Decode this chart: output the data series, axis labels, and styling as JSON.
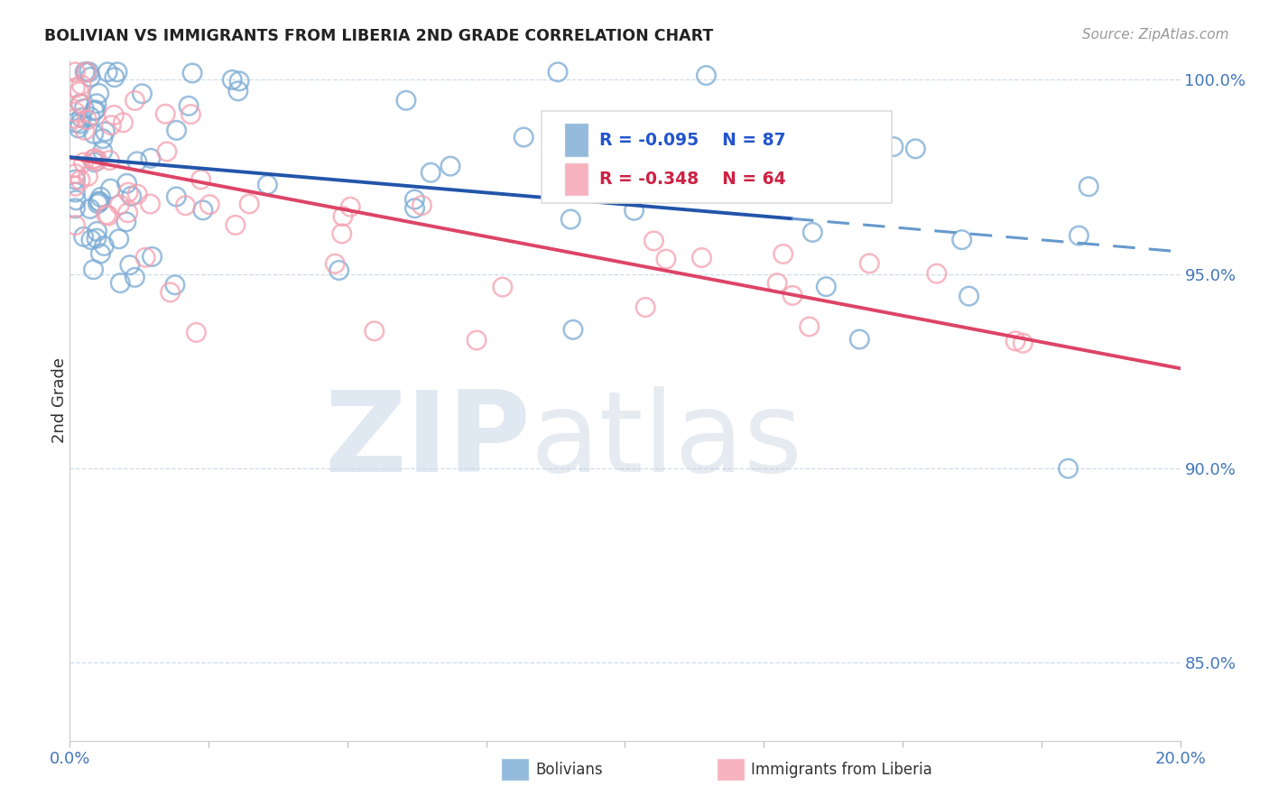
{
  "title": "BOLIVIAN VS IMMIGRANTS FROM LIBERIA 2ND GRADE CORRELATION CHART",
  "source": "Source: ZipAtlas.com",
  "ylabel": "2nd Grade",
  "xlim": [
    0.0,
    0.2
  ],
  "ylim": [
    0.83,
    1.005
  ],
  "yticks": [
    0.85,
    0.9,
    0.95,
    1.0
  ],
  "ytick_labels": [
    "85.0%",
    "90.0%",
    "95.0%",
    "100.0%"
  ],
  "blue_color": "#7aaad4",
  "pink_color": "#f4a0b0",
  "blue_line_solid_color": "#2255aa",
  "blue_line_dash_color": "#6699cc",
  "pink_line_color": "#dd4466",
  "R_blue": -0.095,
  "N_blue": 87,
  "R_pink": -0.348,
  "N_pink": 64,
  "legend_label_blue": "Bolivians",
  "legend_label_pink": "Immigrants from Liberia",
  "grid_color": "#ccddee",
  "tick_label_color": "#4477bb",
  "title_color": "#222222",
  "source_color": "#999999"
}
